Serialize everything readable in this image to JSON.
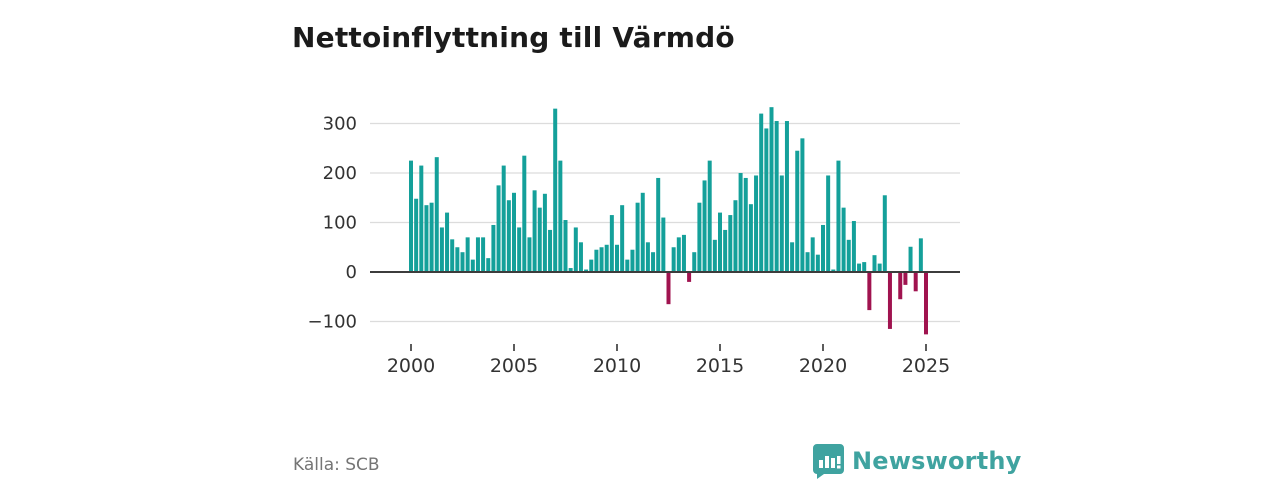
{
  "title": "Nettoinflyttning till Värmdö",
  "source": "Källa: SCB",
  "brand": {
    "name": "Newsworthy",
    "logo_icon": "bar-chart-speech-bubble-icon",
    "color": "#3fa3a0"
  },
  "colors": {
    "positive_bar": "#14a09a",
    "negative_bar": "#a0134f",
    "gridline": "#dcdcdc",
    "zero_line": "#3c3c3c",
    "axis_text": "#333333",
    "title_text": "#1b1b1b",
    "source_text": "#757575"
  },
  "chart_data": {
    "type": "bar",
    "title": "Nettoinflyttning till Värmdö",
    "xlabel": "",
    "ylabel": "",
    "frequency": "quarterly",
    "x_start": "2000Q1",
    "x_end": "2025Q1",
    "ylim": [
      -150,
      360
    ],
    "grid": "horizontal",
    "legend": "none",
    "y_ticks": [
      300,
      200,
      100,
      0,
      -100
    ],
    "x_ticks": [
      "2000",
      "2005",
      "2010",
      "2015",
      "2020",
      "2025"
    ],
    "values": [
      225,
      148,
      215,
      135,
      140,
      232,
      90,
      120,
      66,
      50,
      40,
      70,
      25,
      70,
      70,
      28,
      95,
      175,
      215,
      145,
      160,
      90,
      235,
      70,
      165,
      130,
      158,
      85,
      330,
      225,
      105,
      8,
      90,
      60,
      5,
      25,
      45,
      50,
      55,
      115,
      55,
      135,
      25,
      45,
      140,
      160,
      60,
      40,
      190,
      110,
      -65,
      50,
      70,
      75,
      -20,
      40,
      140,
      185,
      225,
      65,
      120,
      85,
      115,
      145,
      200,
      190,
      137,
      195,
      320,
      290,
      333,
      305,
      195,
      305,
      60,
      245,
      270,
      40,
      70,
      35,
      95,
      195,
      5,
      225,
      130,
      65,
      103,
      17,
      20,
      -77,
      34,
      17,
      155,
      -115,
      2,
      -55,
      -26,
      51,
      -39,
      68,
      -126
    ]
  }
}
